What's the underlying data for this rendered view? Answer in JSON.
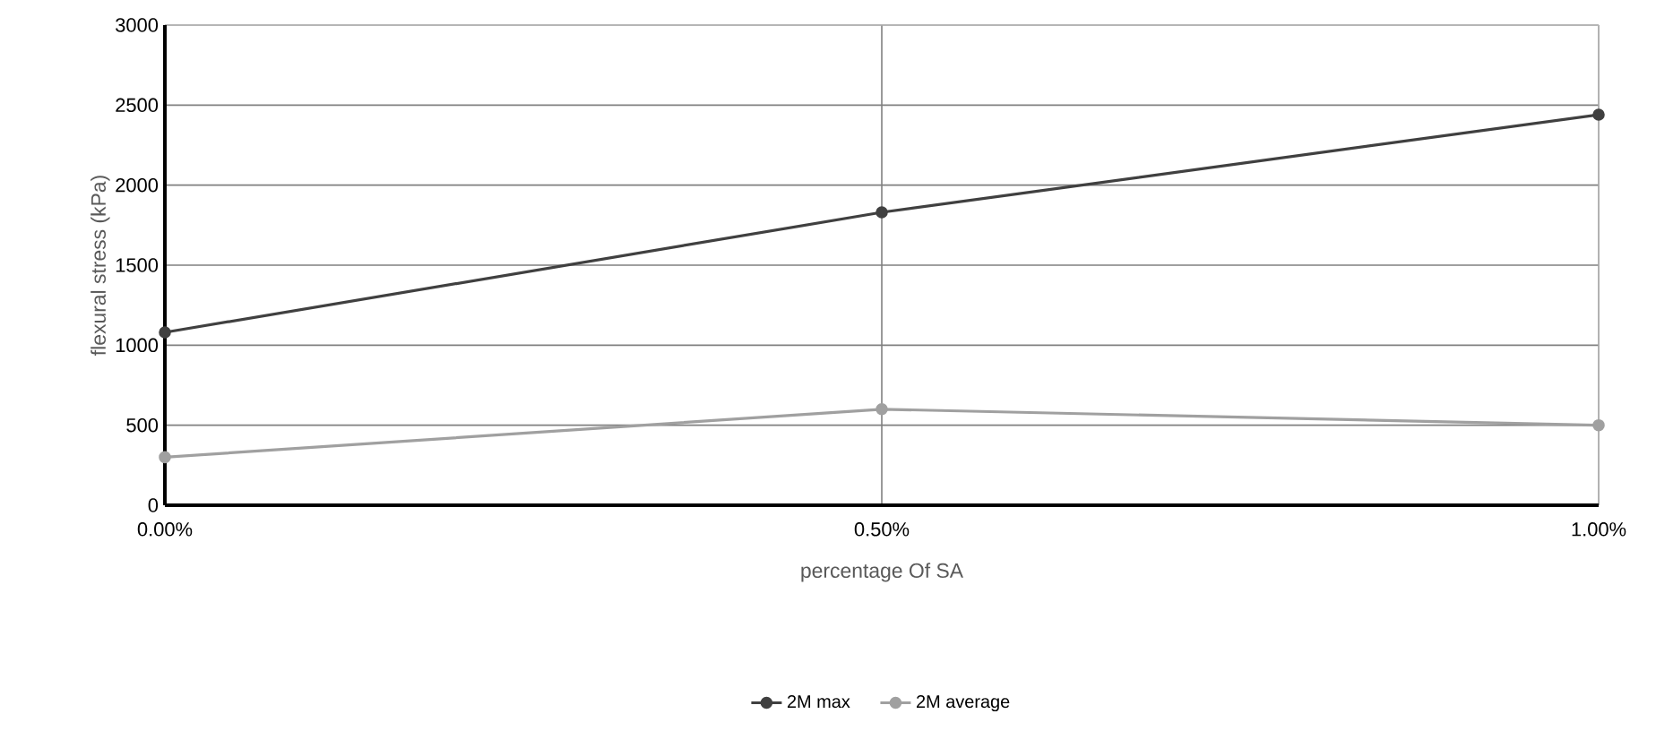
{
  "chart_data": {
    "type": "line",
    "xlabel": "percentage Of SA",
    "ylabel": "flexural stress (kPa)",
    "x": [
      0,
      0.5,
      1.0
    ],
    "xlim": [
      0,
      1.0
    ],
    "xticks": [
      {
        "value": 0,
        "label": "0.00%"
      },
      {
        "value": 0.5,
        "label": "0.50%"
      },
      {
        "value": 1.0,
        "label": "1.00%"
      }
    ],
    "ylim": [
      0,
      3000
    ],
    "yticks": [
      0,
      500,
      1000,
      1500,
      2000,
      2500,
      3000
    ],
    "series": [
      {
        "name": "2M max",
        "color": "#404040",
        "values": [
          1080,
          1830,
          2440
        ]
      },
      {
        "name": "2M average",
        "color": "#a0a0a0",
        "values": [
          300,
          600,
          500
        ]
      }
    ],
    "grid": true,
    "legend": "bottom",
    "marker": "circle",
    "line_style": "solid"
  }
}
